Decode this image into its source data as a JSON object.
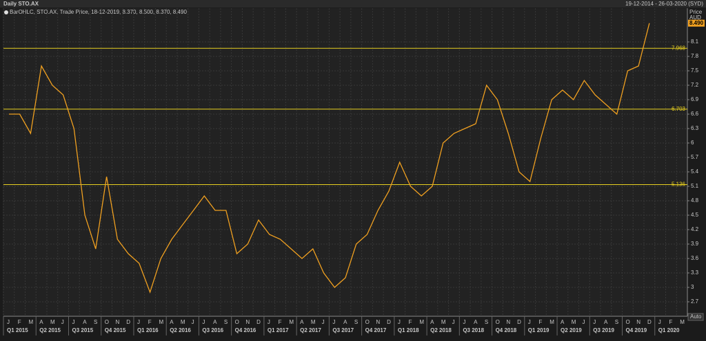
{
  "chart_data": {
    "type": "line",
    "title": "Daily STO.AX",
    "date_range": "19-12-2014 - 26-03-2020 (SYD)",
    "legend_text": "BarOHLC, STO.AX, Trade Price, 18-12-2019, 8.370, 8.500, 8.370, 8.490",
    "y_axis_title": "Price",
    "y_axis_unit": "AUD",
    "scale_button": "Auto",
    "categories": [
      "J",
      "F",
      "M",
      "A",
      "M",
      "J",
      "J",
      "A",
      "S",
      "O",
      "N",
      "D",
      "J",
      "F",
      "M",
      "A",
      "M",
      "J",
      "J",
      "A",
      "S",
      "O",
      "N",
      "D",
      "J",
      "F",
      "M",
      "A",
      "M",
      "J",
      "J",
      "A",
      "S",
      "O",
      "N",
      "D",
      "J",
      "F",
      "M",
      "A",
      "M",
      "J",
      "J",
      "A",
      "S",
      "O",
      "N",
      "D",
      "J",
      "F",
      "M",
      "A",
      "M",
      "J",
      "J",
      "A",
      "S",
      "O",
      "N",
      "D",
      "J",
      "F",
      "M"
    ],
    "quarters": [
      "Q1 2015",
      "Q2 2015",
      "Q3 2015",
      "Q4 2015",
      "Q1 2016",
      "Q2 2016",
      "Q3 2016",
      "Q4 2016",
      "Q1 2017",
      "Q2 2017",
      "Q3 2017",
      "Q4 2017",
      "Q1 2018",
      "Q2 2018",
      "Q3 2018",
      "Q4 2018",
      "Q1 2019",
      "Q2 2019",
      "Q3 2019",
      "Q4 2019",
      "Q1 2020"
    ],
    "series": [
      {
        "name": "STO.AX",
        "color": "#f0a020",
        "values": [
          6.6,
          6.6,
          6.2,
          7.6,
          7.2,
          7.0,
          6.3,
          4.5,
          3.8,
          5.3,
          4.0,
          3.7,
          3.5,
          2.9,
          3.6,
          4.0,
          4.3,
          4.6,
          4.9,
          4.6,
          4.6,
          3.7,
          3.9,
          4.4,
          4.1,
          4.0,
          3.8,
          3.6,
          3.8,
          3.3,
          3.0,
          3.2,
          3.9,
          4.1,
          4.6,
          5.0,
          5.6,
          5.1,
          4.9,
          5.1,
          6.0,
          6.2,
          6.3,
          6.4,
          7.2,
          6.9,
          6.2,
          5.4,
          5.2,
          6.1,
          6.9,
          7.1,
          6.9,
          7.3,
          7.0,
          6.8,
          6.6,
          7.5,
          7.6,
          8.49,
          null,
          null,
          null
        ]
      }
    ],
    "reference_lines": [
      {
        "value": 7.968,
        "color": "#e8d020"
      },
      {
        "value": 6.703,
        "color": "#e8d020"
      },
      {
        "value": 5.136,
        "color": "#e8d020"
      }
    ],
    "last_price": {
      "value": 8.49,
      "label": "8.490"
    },
    "ylim": [
      2.4,
      8.8
    ],
    "yticks": [
      2.7,
      3,
      3.3,
      3.6,
      3.9,
      4.2,
      4.5,
      4.8,
      5.1,
      5.4,
      5.7,
      6,
      6.3,
      6.6,
      6.9,
      7.2,
      7.5,
      7.8,
      8.1
    ],
    "grid": true
  }
}
